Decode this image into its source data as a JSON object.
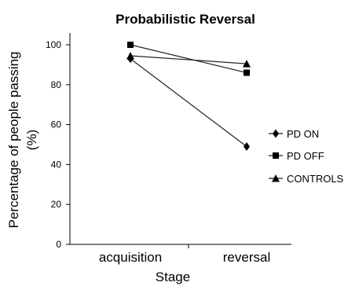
{
  "chart_data": {
    "type": "line",
    "title": "Probabilistic Reversal",
    "xlabel": "Stage",
    "ylabel_line1": "Percentage of people passing",
    "ylabel_line2": "(%)",
    "categories": [
      "acquisition",
      "reversal"
    ],
    "ylim": [
      0,
      100
    ],
    "yticks": [
      "0",
      "20",
      "40",
      "60",
      "80",
      "100"
    ],
    "grid": false,
    "legend_position": "right",
    "series": [
      {
        "name": "PD ON",
        "marker": "diamond",
        "values": [
          93,
          49
        ]
      },
      {
        "name": "PD OFF",
        "marker": "square",
        "values": [
          100,
          86
        ]
      },
      {
        "name": "CONTROLS",
        "marker": "triangle",
        "values": [
          94.5,
          90.5
        ]
      }
    ],
    "colors": {
      "ink": "#000000",
      "line": "#222222"
    }
  }
}
